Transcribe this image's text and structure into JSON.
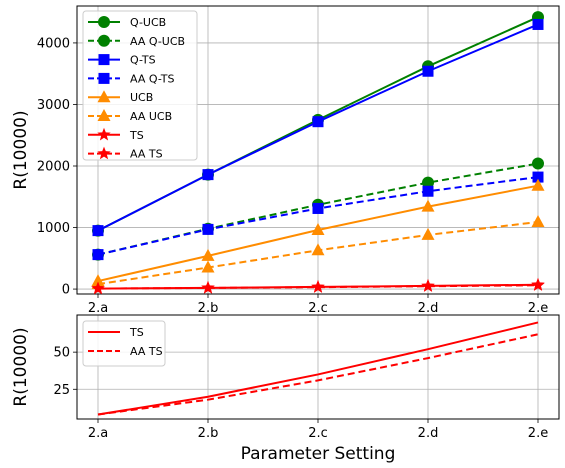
{
  "chart_data": [
    {
      "type": "line",
      "panel": "top",
      "ylabel": "R(10000)",
      "ylim": [
        -80,
        4600
      ],
      "yticks": [
        0,
        1000,
        2000,
        3000,
        4000
      ],
      "ytick_labels": [
        "0",
        "1000",
        "2000",
        "3000",
        "4000"
      ],
      "categories": [
        "2.a",
        "2.b",
        "2.c",
        "2.d",
        "2.e"
      ],
      "grid": true,
      "legend_position": "top-left",
      "series": [
        {
          "name": "Q-UCB",
          "color": "#008000",
          "style": "solid",
          "marker": "circle",
          "values": [
            950,
            1860,
            2750,
            3620,
            4420
          ]
        },
        {
          "name": "AA Q-UCB",
          "color": "#008000",
          "style": "dashed",
          "marker": "circle",
          "values": [
            560,
            980,
            1370,
            1730,
            2040
          ]
        },
        {
          "name": "Q-TS",
          "color": "#0000ff",
          "style": "solid",
          "marker": "square",
          "values": [
            950,
            1860,
            2720,
            3540,
            4300
          ]
        },
        {
          "name": "AA Q-TS",
          "color": "#0000ff",
          "style": "dashed",
          "marker": "square",
          "values": [
            560,
            970,
            1310,
            1590,
            1820
          ]
        },
        {
          "name": "UCB",
          "color": "#ff8c00",
          "style": "solid",
          "marker": "triangle",
          "values": [
            130,
            540,
            960,
            1340,
            1680
          ]
        },
        {
          "name": "AA UCB",
          "color": "#ff8c00",
          "style": "dashed",
          "marker": "triangle",
          "values": [
            80,
            350,
            630,
            880,
            1090
          ]
        },
        {
          "name": "TS",
          "color": "#ff0000",
          "style": "solid",
          "marker": "star",
          "values": [
            8,
            20,
            35,
            52,
            70
          ]
        },
        {
          "name": "AA TS",
          "color": "#ff0000",
          "style": "dashed",
          "marker": "star",
          "values": [
            8,
            18,
            31,
            46,
            62
          ]
        }
      ]
    },
    {
      "type": "line",
      "panel": "bottom",
      "ylabel": "R(10000)",
      "xlabel": "Parameter Setting",
      "ylim": [
        5,
        75
      ],
      "yticks": [
        25,
        50
      ],
      "ytick_labels": [
        "25",
        "50"
      ],
      "categories": [
        "2.a",
        "2.b",
        "2.c",
        "2.d",
        "2.e"
      ],
      "grid": true,
      "legend_position": "top-left",
      "series": [
        {
          "name": "TS",
          "color": "#ff0000",
          "style": "solid",
          "marker": "none",
          "values": [
            8,
            20,
            35,
            52,
            70
          ]
        },
        {
          "name": "AA TS",
          "color": "#ff0000",
          "style": "dashed",
          "marker": "none",
          "values": [
            8,
            18,
            31,
            46,
            62
          ]
        }
      ]
    }
  ]
}
